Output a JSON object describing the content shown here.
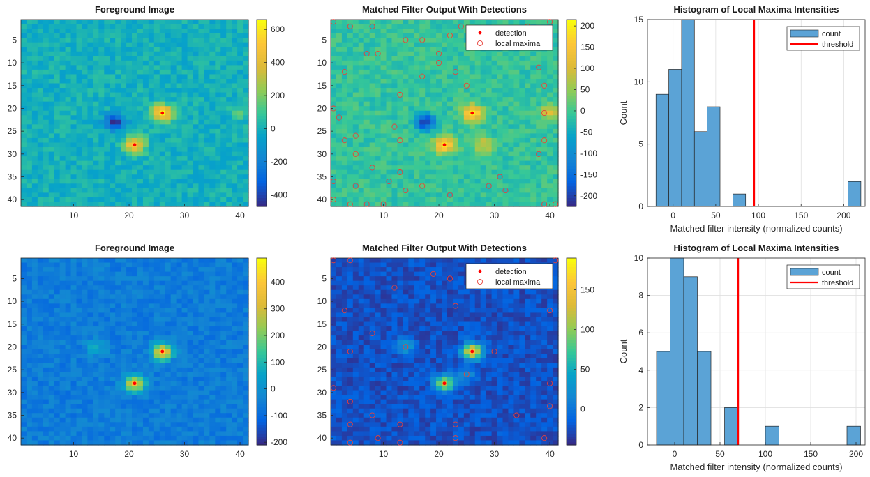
{
  "chart_data": [
    {
      "type": "heatmap",
      "title": "Foreground Image",
      "xlim": [
        0.5,
        41.5
      ],
      "ylim": [
        0.5,
        41.5
      ],
      "xticks": [
        10,
        20,
        30,
        40
      ],
      "yticks": [
        5,
        10,
        15,
        20,
        25,
        30,
        35,
        40
      ],
      "clim": [
        -470,
        660
      ],
      "colorbar_ticks": [
        -400,
        -200,
        0,
        200,
        400,
        600
      ],
      "background": 0,
      "blobs": [
        {
          "x": 26,
          "y": 21,
          "peak": 640
        },
        {
          "x": 21,
          "y": 28,
          "peak": 560
        },
        {
          "x": 17.5,
          "y": 23,
          "peak": -460
        },
        {
          "x": 40,
          "y": 21,
          "peak": 130
        }
      ],
      "detections": [
        {
          "x": 26,
          "y": 21
        },
        {
          "x": 21,
          "y": 28
        }
      ]
    },
    {
      "type": "heatmap",
      "title": "Matched Filter Output With Detections",
      "xlim": [
        0.5,
        41.5
      ],
      "ylim": [
        0.5,
        41.5
      ],
      "xticks": [
        10,
        20,
        30,
        40
      ],
      "yticks": [
        5,
        10,
        15,
        20,
        25,
        30,
        35,
        40
      ],
      "clim": [
        -225,
        215
      ],
      "colorbar_ticks": [
        -200,
        -150,
        -100,
        -50,
        0,
        50,
        100,
        150,
        200
      ],
      "background": -10,
      "blobs": [
        {
          "x": 26,
          "y": 21,
          "peak": 210
        },
        {
          "x": 21,
          "y": 28,
          "peak": 215
        },
        {
          "x": 17.5,
          "y": 23,
          "peak": -210
        },
        {
          "x": 28,
          "y": 28,
          "peak": 110
        },
        {
          "x": 40,
          "y": 21,
          "peak": 110
        }
      ],
      "legend": [
        "detection",
        "local maxima"
      ],
      "legend_position": "top-right",
      "detections": [
        {
          "x": 26,
          "y": 21
        },
        {
          "x": 21,
          "y": 28
        }
      ],
      "local_maxima": [
        [
          1,
          1
        ],
        [
          4,
          2
        ],
        [
          8,
          2
        ],
        [
          14,
          5
        ],
        [
          17,
          5
        ],
        [
          22,
          4
        ],
        [
          24,
          2
        ],
        [
          36,
          2
        ],
        [
          40,
          1
        ],
        [
          9,
          8
        ],
        [
          7,
          8
        ],
        [
          20,
          8
        ],
        [
          3,
          12
        ],
        [
          17,
          13
        ],
        [
          20,
          10
        ],
        [
          23,
          12
        ],
        [
          25,
          15
        ],
        [
          38,
          11
        ],
        [
          39,
          15
        ],
        [
          13,
          17
        ],
        [
          1,
          20
        ],
        [
          2,
          22
        ],
        [
          39,
          21
        ],
        [
          12,
          24
        ],
        [
          3,
          27
        ],
        [
          5,
          26
        ],
        [
          13,
          27
        ],
        [
          39,
          27
        ],
        [
          5,
          30
        ],
        [
          38,
          30
        ],
        [
          8,
          33
        ],
        [
          13,
          34
        ],
        [
          31,
          35
        ],
        [
          1,
          36
        ],
        [
          5,
          37
        ],
        [
          11,
          36
        ],
        [
          14,
          38
        ],
        [
          17,
          37
        ],
        [
          22,
          39
        ],
        [
          29,
          37
        ],
        [
          32,
          38
        ],
        [
          1,
          40
        ],
        [
          4,
          41
        ],
        [
          7,
          41
        ],
        [
          10,
          41
        ],
        [
          39,
          41
        ],
        [
          41,
          41
        ]
      ]
    },
    {
      "type": "bar",
      "title": "Histogram of Local Maxima Intensities",
      "xlabel": "Matched filter intensity (normalized counts)",
      "ylabel": "Count",
      "xlim": [
        -30,
        225
      ],
      "ylim": [
        0,
        15
      ],
      "xticks": [
        0,
        50,
        100,
        150,
        200
      ],
      "yticks": [
        0,
        5,
        10,
        15
      ],
      "bin_edges": [
        -20,
        -5,
        10,
        25,
        40,
        55,
        70,
        85,
        100,
        115,
        130,
        145,
        160,
        175,
        190,
        205,
        220
      ],
      "counts": [
        9,
        11,
        15,
        6,
        8,
        0,
        1,
        0,
        0,
        0,
        0,
        0,
        0,
        0,
        0,
        2
      ],
      "threshold": 95,
      "legend": [
        "count",
        "threshold"
      ],
      "legend_position": "top-right"
    },
    {
      "type": "heatmap",
      "title": "Foreground Image",
      "xlim": [
        0.5,
        41.5
      ],
      "ylim": [
        0.5,
        41.5
      ],
      "xticks": [
        10,
        20,
        30,
        40
      ],
      "yticks": [
        5,
        10,
        15,
        20,
        25,
        30,
        35,
        40
      ],
      "clim": [
        -210,
        490
      ],
      "colorbar_ticks": [
        -200,
        -100,
        0,
        100,
        200,
        300,
        400
      ],
      "background": -60,
      "blobs": [
        {
          "x": 26,
          "y": 21,
          "peak": 480
        },
        {
          "x": 21,
          "y": 28,
          "peak": 400
        },
        {
          "x": 14,
          "y": 20,
          "peak": 120
        }
      ],
      "detections": [
        {
          "x": 26,
          "y": 21
        },
        {
          "x": 21,
          "y": 28
        }
      ]
    },
    {
      "type": "heatmap",
      "title": "Matched Filter Output With Detections",
      "xlim": [
        0.5,
        41.5
      ],
      "ylim": [
        0.5,
        41.5
      ],
      "xticks": [
        10,
        20,
        30,
        40
      ],
      "yticks": [
        5,
        10,
        15,
        20,
        25,
        30,
        35,
        40
      ],
      "clim": [
        -45,
        190
      ],
      "colorbar_ticks": [
        0,
        50,
        100,
        150
      ],
      "background": -25,
      "blobs": [
        {
          "x": 26,
          "y": 21,
          "peak": 185
        },
        {
          "x": 21,
          "y": 28,
          "peak": 150
        },
        {
          "x": 14,
          "y": 20,
          "peak": 60
        },
        {
          "x": 25,
          "y": 26,
          "peak": 40
        }
      ],
      "legend": [
        "detection",
        "local maxima"
      ],
      "legend_position": "top-right",
      "detections": [
        {
          "x": 26,
          "y": 21
        },
        {
          "x": 21,
          "y": 28
        }
      ],
      "local_maxima": [
        [
          1,
          1
        ],
        [
          4,
          1
        ],
        [
          19,
          4
        ],
        [
          22,
          5
        ],
        [
          12,
          7
        ],
        [
          3,
          12
        ],
        [
          23,
          11
        ],
        [
          8,
          17
        ],
        [
          40,
          12
        ],
        [
          14,
          20
        ],
        [
          30,
          21
        ],
        [
          4,
          21
        ],
        [
          25,
          26
        ],
        [
          1,
          29
        ],
        [
          40,
          28
        ],
        [
          40,
          33
        ],
        [
          4,
          32
        ],
        [
          34,
          35
        ],
        [
          8,
          35
        ],
        [
          13,
          37
        ],
        [
          23,
          37
        ],
        [
          4,
          37
        ],
        [
          4,
          41
        ],
        [
          9,
          40
        ],
        [
          13,
          41
        ],
        [
          23,
          40
        ],
        [
          39,
          40
        ],
        [
          41,
          1
        ]
      ]
    },
    {
      "type": "bar",
      "title": "Histogram of Local Maxima Intensities",
      "xlabel": "Matched filter intensity (normalized counts)",
      "ylabel": "Count",
      "xlim": [
        -30,
        210
      ],
      "ylim": [
        0,
        10
      ],
      "xticks": [
        0,
        50,
        100,
        150,
        200
      ],
      "yticks": [
        0,
        2,
        4,
        6,
        8,
        10
      ],
      "bin_edges": [
        -20,
        -5,
        10,
        25,
        40,
        55,
        70,
        85,
        100,
        115,
        130,
        145,
        160,
        175,
        190,
        205
      ],
      "counts": [
        5,
        10,
        9,
        5,
        0,
        2,
        0,
        0,
        1,
        0,
        0,
        0,
        0,
        0,
        1
      ],
      "threshold": 70,
      "legend": [
        "count",
        "threshold"
      ],
      "legend_position": "top-right"
    }
  ]
}
